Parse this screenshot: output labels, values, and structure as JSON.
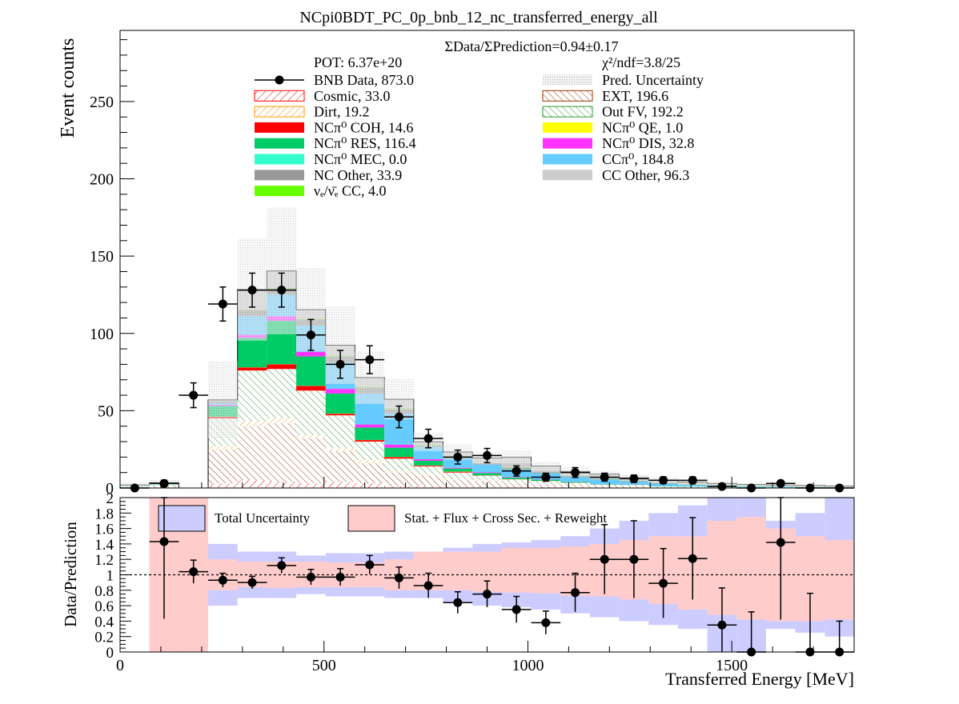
{
  "title": "NCpi0BDT_PC_0p_bnb_12_nc_transferred_energy_all",
  "colors": {
    "cosmic": "#ff0000",
    "dirt": "#ff9900",
    "nc_coh": "#ff0000",
    "nc_res": "#00cc66",
    "nc_mec": "#33ffcc",
    "nc_other": "#999999",
    "nue_cc": "#66ff00",
    "ext": "#993300",
    "outfv": "#339933",
    "nc_qe": "#ffff00",
    "nc_dis": "#ff33ff",
    "cc_pi0": "#66ccff",
    "cc_other": "#cccccc",
    "total_unc": "#ccccff",
    "stat_unc": "#ffcccc"
  },
  "chart_data": [
    {
      "type": "bar",
      "stacked": true,
      "xlabel": "",
      "ylabel": "Event counts",
      "xlim": [
        0,
        1800
      ],
      "ylim": [
        0,
        296
      ],
      "yticks": [
        0,
        50,
        100,
        150,
        200,
        250
      ],
      "ratio_text": "ΣData/ΣPrediction=0.94±0.17",
      "pot_text": "POT: 6.37e+20",
      "chi2_text": "χ²/ndf=3.8/25",
      "legend_placement": "top",
      "bin_edges": [
        0,
        72,
        144,
        216,
        288,
        360,
        432,
        504,
        576,
        648,
        720,
        792,
        864,
        936,
        1008,
        1080,
        1152,
        1224,
        1296,
        1368,
        1440,
        1512,
        1584,
        1656,
        1728,
        1800
      ],
      "legend": [
        {
          "key": "data",
          "label": "BNB Data, 873.0"
        },
        {
          "key": "unc",
          "label": "Pred. Uncertainty"
        },
        {
          "key": "cosmic",
          "label": "Cosmic, 33.0"
        },
        {
          "key": "ext",
          "label": "EXT, 196.6"
        },
        {
          "key": "dirt",
          "label": "Dirt, 19.2"
        },
        {
          "key": "outfv",
          "label": "Out FV, 192.2"
        },
        {
          "key": "nc_coh",
          "label": "NCπ⁰ COH,  14.6"
        },
        {
          "key": "nc_qe",
          "label": "NCπ⁰ QE,  1.0"
        },
        {
          "key": "nc_res",
          "label": "NCπ⁰ RES,  116.4"
        },
        {
          "key": "nc_dis",
          "label": "NCπ⁰ DIS,  32.8"
        },
        {
          "key": "nc_mec",
          "label": "NCπ⁰ MEC,  0.0"
        },
        {
          "key": "cc_pi0",
          "label": "CCπ⁰, 184.8"
        },
        {
          "key": "nc_other",
          "label": "NC Other, 33.9"
        },
        {
          "key": "cc_other",
          "label": "CC Other, 96.3"
        },
        {
          "key": "nue_cc",
          "label": "νₑ/ν̄ₑ CC, 4.0"
        }
      ],
      "series": [
        {
          "key": "cosmic",
          "name": "Cosmic",
          "values": [
            0,
            0,
            0,
            3,
            5,
            4,
            3,
            4,
            3,
            1,
            1,
            0.5,
            0.5,
            0.3,
            0.3,
            0.2,
            0.1,
            0.1,
            0.1,
            0.1,
            0,
            0,
            0,
            0,
            0
          ]
        },
        {
          "key": "ext",
          "name": "EXT",
          "values": [
            0.5,
            1,
            0,
            22,
            35,
            38,
            29,
            20,
            13,
            9,
            7,
            5,
            4,
            3,
            2,
            1.5,
            1,
            1,
            0.5,
            0.5,
            0.3,
            0.3,
            0.2,
            0.1,
            0.1
          ]
        },
        {
          "key": "dirt",
          "name": "Dirt",
          "values": [
            0,
            0,
            0,
            2,
            3,
            3,
            2,
            2,
            2,
            1,
            1,
            0.5,
            0.5,
            0.3,
            0.2,
            0.2,
            0.1,
            0.1,
            0,
            0,
            0,
            0,
            0,
            0,
            0
          ]
        },
        {
          "key": "outfv",
          "name": "Out FV",
          "values": [
            0.5,
            1,
            0,
            18,
            33,
            32,
            29,
            21,
            12,
            8,
            5,
            4,
            3,
            2,
            2,
            1.5,
            1,
            0.8,
            0.5,
            0.3,
            0.2,
            0.2,
            0.1,
            0.1,
            0.1
          ]
        },
        {
          "key": "nc_coh",
          "name": "NCπ⁰ COH",
          "values": [
            0,
            0,
            0,
            1,
            2,
            3,
            3,
            1,
            1,
            1,
            0.5,
            0.5,
            0.2,
            0.2,
            0.1,
            0.1,
            0,
            0,
            0,
            0,
            0,
            0,
            0,
            0,
            0
          ]
        },
        {
          "key": "nc_qe",
          "name": "NCπ⁰ QE",
          "values": [
            0,
            0,
            0,
            0.1,
            0.1,
            0.1,
            0.1,
            0.1,
            0.1,
            0.1,
            0.1,
            0.1,
            0,
            0,
            0,
            0,
            0,
            0,
            0,
            0,
            0,
            0,
            0,
            0,
            0
          ]
        },
        {
          "key": "nc_res",
          "name": "NCπ⁰ RES",
          "values": [
            0.2,
            0.5,
            0,
            7,
            19,
            28,
            19,
            13,
            8,
            6,
            3,
            2,
            1.5,
            1,
            0.8,
            0.5,
            0.3,
            0.2,
            0.2,
            0.1,
            0.1,
            0.1,
            0,
            0,
            0
          ]
        },
        {
          "key": "nc_dis",
          "name": "NCπ⁰ DIS",
          "values": [
            0,
            0,
            0,
            0.8,
            2,
            3,
            3,
            3,
            2,
            2,
            1,
            0.5,
            0.5,
            0.3,
            0.2,
            0.1,
            0.1,
            0.1,
            0,
            0,
            0,
            0,
            0,
            0,
            0
          ]
        },
        {
          "key": "nc_mec",
          "name": "NCπ⁰ MEC",
          "values": [
            0,
            0,
            0,
            0,
            0,
            0,
            0,
            0,
            0,
            0,
            0,
            0,
            0,
            0,
            0,
            0,
            0,
            0,
            0,
            0,
            0,
            0,
            0,
            0,
            0
          ]
        },
        {
          "key": "cc_pi0",
          "name": "CCπ⁰",
          "values": [
            0.2,
            0.3,
            0,
            1,
            12,
            14,
            17,
            17,
            20,
            20,
            8,
            6,
            5,
            5,
            4,
            3,
            3,
            2,
            1.5,
            1,
            1,
            0.5,
            0.5,
            0.3,
            0.2
          ]
        },
        {
          "key": "nc_other",
          "name": "NC Other",
          "values": [
            0,
            0.1,
            0,
            1,
            4,
            4,
            4,
            4,
            4,
            3,
            1,
            1,
            1,
            0.6,
            0.5,
            0.5,
            0.3,
            0.3,
            0.3,
            0.2,
            0.2,
            0.1,
            0.1,
            0.1,
            0.1
          ]
        },
        {
          "key": "nue_cc",
          "name": "νₑ/ν̄ₑ CC",
          "values": [
            0,
            0,
            0,
            0.1,
            0.2,
            0.3,
            0.3,
            0.3,
            0.3,
            0.3,
            0.3,
            0.2,
            0.2,
            0.2,
            0.1,
            0.1,
            0.1,
            0.1,
            0.1,
            0.1,
            0.1,
            0.1,
            0.1,
            0.1,
            0.1
          ]
        },
        {
          "key": "cc_other",
          "name": "CC Other",
          "values": [
            0.6,
            0.6,
            0,
            1,
            13,
            11,
            6,
            7,
            6,
            6,
            2,
            3,
            3,
            7,
            4,
            3,
            3,
            2,
            2,
            1.5,
            1,
            1,
            1,
            1,
            0.7
          ]
        }
      ],
      "uncertainty": {
        "key": "unc",
        "name": "Pred. Uncertainty",
        "values": [
          1.5,
          2,
          0,
          25,
          33,
          41,
          27,
          25,
          17,
          13,
          6,
          5,
          4,
          4,
          3,
          3,
          2,
          2,
          1.7,
          1.5,
          1.2,
          1,
          1,
          0.8,
          0.6
        ]
      },
      "data": {
        "key": "data",
        "name": "BNB Data",
        "values": [
          0,
          3,
          60,
          119,
          128,
          128,
          99,
          80,
          83,
          46,
          32,
          20,
          21,
          11,
          7,
          10,
          7,
          6,
          5,
          5,
          1,
          0,
          3,
          0,
          0
        ],
        "errors": [
          1,
          2,
          8,
          11,
          11,
          11,
          10,
          9,
          9,
          7,
          6,
          4.5,
          4.6,
          3.3,
          2.6,
          3.2,
          2.6,
          2.4,
          2.2,
          2.2,
          1,
          1,
          1.7,
          1,
          1
        ]
      }
    },
    {
      "type": "scatter",
      "xlabel": "Transferred Energy [MeV]",
      "ylabel": "Data/Prediction",
      "xlim": [
        0,
        1800
      ],
      "ylim": [
        0,
        2
      ],
      "xticks": [
        0,
        500,
        1000,
        1500
      ],
      "yticks": [
        0,
        0.2,
        0.4,
        0.6,
        0.8,
        1,
        1.2,
        1.4,
        1.6,
        1.8,
        2
      ],
      "reference_line": 1,
      "legend_placement": "top",
      "legend": [
        {
          "key": "total_unc",
          "label": "Total Uncertainty"
        },
        {
          "key": "stat_unc",
          "label": "Stat. + Flux + Cross Sec. + Reweight"
        }
      ],
      "total_unc_band": [
        [
          1,
          1
        ],
        [
          0,
          2
        ],
        [
          0,
          2
        ],
        [
          0.6,
          1.4
        ],
        [
          0.7,
          1.3
        ],
        [
          0.7,
          1.3
        ],
        [
          0.75,
          1.25
        ],
        [
          0.72,
          1.28
        ],
        [
          0.72,
          1.28
        ],
        [
          0.7,
          1.3
        ],
        [
          0.7,
          1.3
        ],
        [
          0.65,
          1.35
        ],
        [
          0.6,
          1.4
        ],
        [
          0.58,
          1.42
        ],
        [
          0.55,
          1.45
        ],
        [
          0.5,
          1.5
        ],
        [
          0.45,
          1.6
        ],
        [
          0.4,
          1.7
        ],
        [
          0.35,
          1.8
        ],
        [
          0.3,
          1.9
        ],
        [
          0,
          2
        ],
        [
          0,
          2
        ],
        [
          0.3,
          1.7
        ],
        [
          0.25,
          1.8
        ],
        [
          0.2,
          2
        ]
      ],
      "stat_unc_band": [
        [
          1,
          1
        ],
        [
          0,
          2
        ],
        [
          0,
          2
        ],
        [
          0.8,
          1.2
        ],
        [
          0.84,
          1.17
        ],
        [
          0.83,
          1.17
        ],
        [
          0.84,
          1.17
        ],
        [
          0.84,
          1.16
        ],
        [
          0.84,
          1.16
        ],
        [
          0.8,
          1.2
        ],
        [
          0.8,
          1.3
        ],
        [
          0.8,
          1.3
        ],
        [
          0.78,
          1.3
        ],
        [
          0.77,
          1.35
        ],
        [
          0.76,
          1.35
        ],
        [
          0.73,
          1.37
        ],
        [
          0.72,
          1.4
        ],
        [
          0.68,
          1.45
        ],
        [
          0.62,
          1.5
        ],
        [
          0.55,
          1.5
        ],
        [
          0.48,
          1.7
        ],
        [
          0.42,
          1.75
        ],
        [
          0.4,
          1.6
        ],
        [
          0.4,
          1.5
        ],
        [
          0.42,
          1.45
        ]
      ],
      "points": [
        {
          "x": 108,
          "y": 1.43,
          "err": 1.0
        },
        {
          "x": 180,
          "y": 1.04,
          "err": 0.15
        },
        {
          "x": 252,
          "y": 0.93,
          "err": 0.09
        },
        {
          "x": 324,
          "y": 0.9,
          "err": 0.08
        },
        {
          "x": 396,
          "y": 1.12,
          "err": 0.1
        },
        {
          "x": 468,
          "y": 0.97,
          "err": 0.1
        },
        {
          "x": 540,
          "y": 0.97,
          "err": 0.11
        },
        {
          "x": 612,
          "y": 1.13,
          "err": 0.12
        },
        {
          "x": 684,
          "y": 0.96,
          "err": 0.14
        },
        {
          "x": 756,
          "y": 0.86,
          "err": 0.16
        },
        {
          "x": 828,
          "y": 0.64,
          "err": 0.14
        },
        {
          "x": 900,
          "y": 0.75,
          "err": 0.17
        },
        {
          "x": 972,
          "y": 0.55,
          "err": 0.17
        },
        {
          "x": 1044,
          "y": 0.38,
          "err": 0.15
        },
        {
          "x": 1116,
          "y": 0.77,
          "err": 0.25
        },
        {
          "x": 1188,
          "y": 1.2,
          "err": 0.45
        },
        {
          "x": 1260,
          "y": 1.2,
          "err": 0.5
        },
        {
          "x": 1332,
          "y": 0.89,
          "err": 0.45
        },
        {
          "x": 1404,
          "y": 1.21,
          "err": 0.53
        },
        {
          "x": 1476,
          "y": 0.35,
          "err": 0.48
        },
        {
          "x": 1548,
          "y": 0,
          "err": 0.52
        },
        {
          "x": 1620,
          "y": 1.42,
          "err": 1.0
        },
        {
          "x": 1692,
          "y": 0,
          "err": 0.76
        },
        {
          "x": 1764,
          "y": 0,
          "err": 0.4
        }
      ]
    }
  ]
}
